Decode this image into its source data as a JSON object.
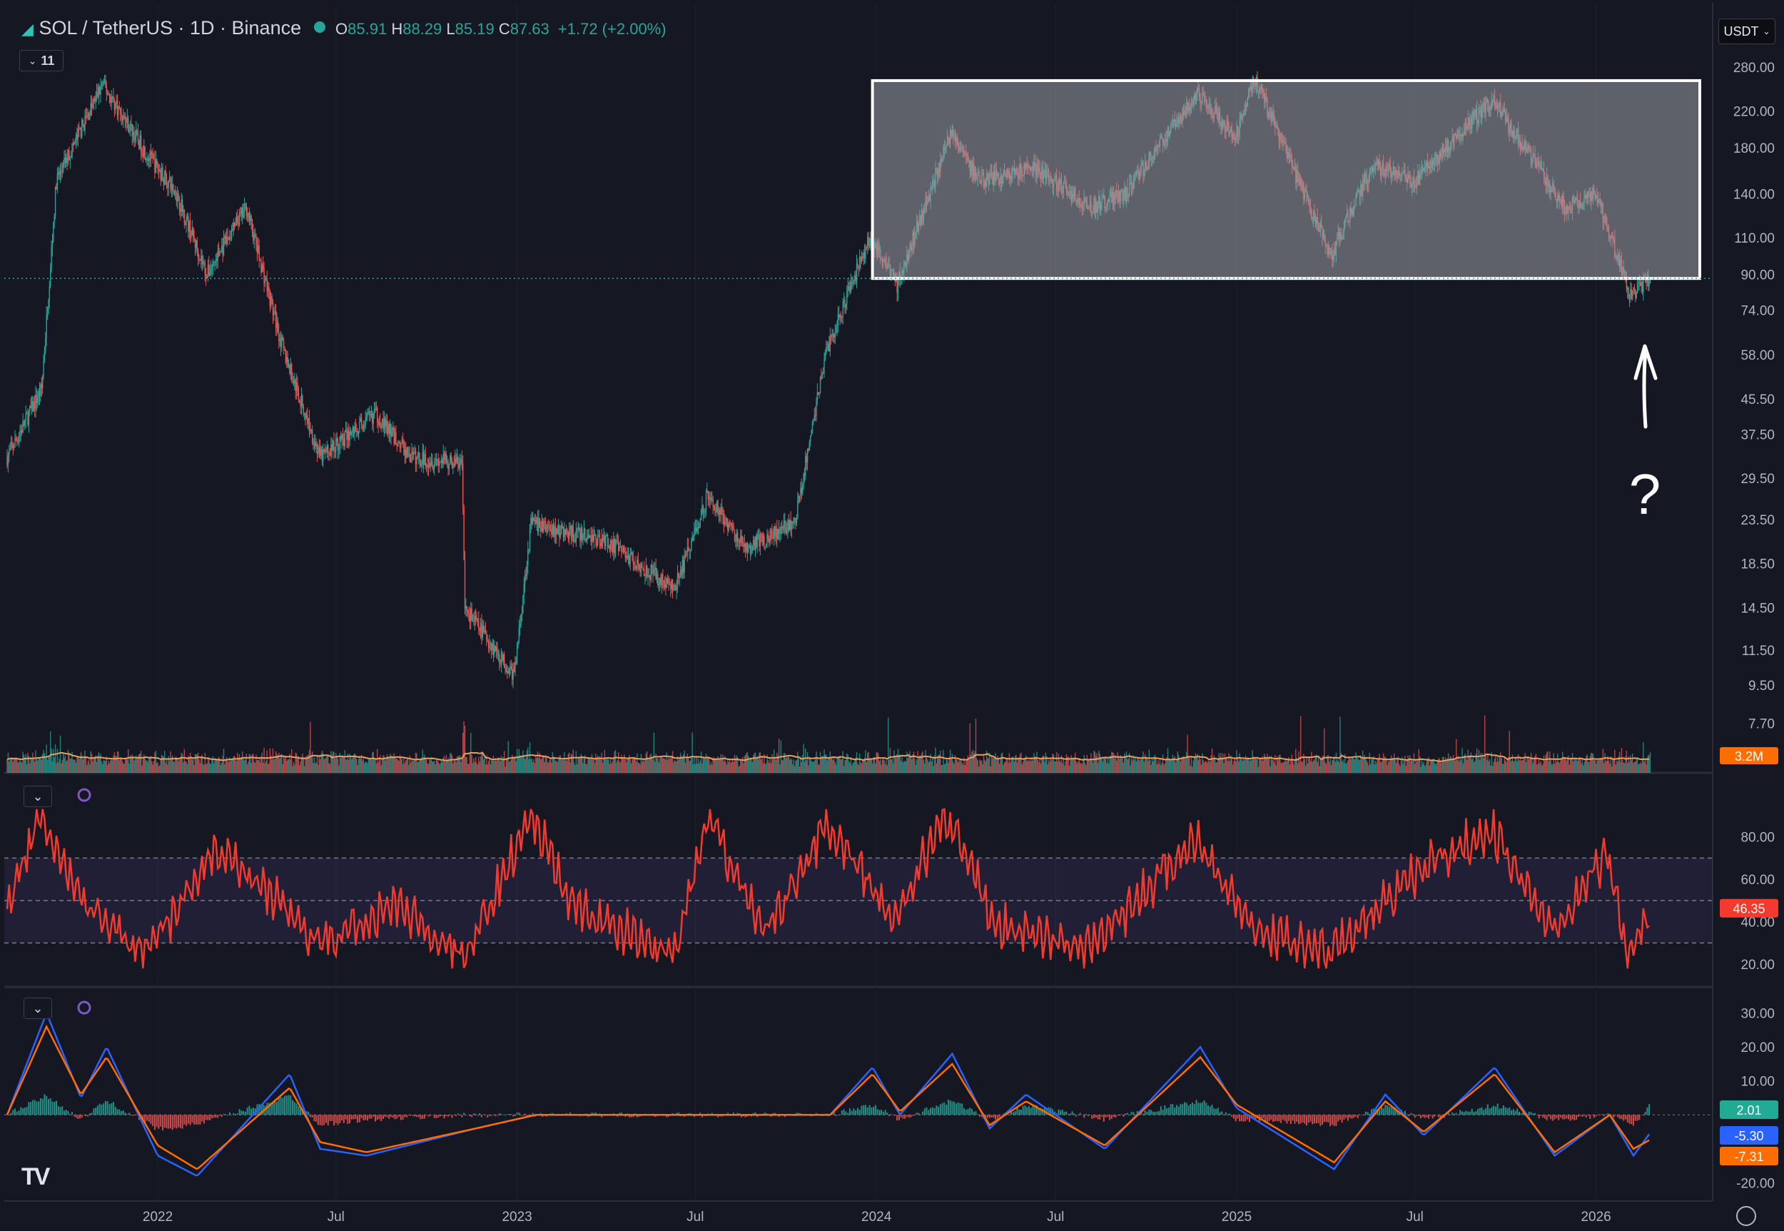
{
  "header": {
    "symbol": "SOL / TetherUS · 1D · Binance",
    "open_label": "O",
    "open": "85.91",
    "high_label": "H",
    "high": "88.29",
    "low_label": "L",
    "low": "85.19",
    "close_label": "C",
    "close": "87.63",
    "change": "+1.72 (+2.00%)",
    "indicator_count": "11"
  },
  "currency_button": "USDT",
  "colors": {
    "up": "#26a69a",
    "down": "#ef5350",
    "rsi": "#f23b2e",
    "macd": "#2962ff",
    "signal": "#ff6d00",
    "volume_ma": "#e8a062",
    "range_box": "#9a9ca6",
    "background": "#151722"
  },
  "price_panel": {
    "axis_ticks": [
      "280.00",
      "220.00",
      "180.00",
      "140.00",
      "110.00",
      "90.00",
      "74.00",
      "58.00",
      "45.50",
      "37.50",
      "29.50",
      "23.50",
      "18.50",
      "14.50",
      "11.50",
      "9.50",
      "7.70"
    ],
    "volume_badge": "3.2M",
    "annotation": "?"
  },
  "rsi_panel": {
    "axis_ticks": [
      "80.00",
      "60.00",
      "40.00",
      "20.00"
    ],
    "current_badge": "46.35"
  },
  "macd_panel": {
    "axis_ticks": [
      "30.00",
      "20.00",
      "10.00",
      "-20.00"
    ],
    "histogram_badge": "2.01",
    "macd_badge": "-5.30",
    "signal_badge": "-7.31"
  },
  "time_axis": [
    "2022",
    "Jul",
    "2023",
    "Jul",
    "2024",
    "Jul",
    "2025",
    "Jul",
    "2026"
  ],
  "chart_data": [
    {
      "type": "candlestick",
      "price_unit": "USDT",
      "scale": "log",
      "ylim": [
        7.0,
        290
      ],
      "x": [
        "2021-08-01",
        "2021-09-05",
        "2021-09-20",
        "2021-11-06",
        "2021-12-20",
        "2022-01-20",
        "2022-02-20",
        "2022-04-01",
        "2022-05-08",
        "2022-06-15",
        "2022-08-10",
        "2022-09-15",
        "2022-11-06",
        "2022-11-09",
        "2022-12-29",
        "2023-01-15",
        "2023-02-15",
        "2023-04-01",
        "2023-06-10",
        "2023-07-14",
        "2023-08-20",
        "2023-10-10",
        "2023-11-10",
        "2023-12-25",
        "2024-01-22",
        "2024-03-18",
        "2024-04-13",
        "2024-06-10",
        "2024-08-05",
        "2024-09-10",
        "2024-11-22",
        "2024-12-30",
        "2025-01-19",
        "2025-03-10",
        "2025-04-07",
        "2025-05-20",
        "2025-07-01",
        "2025-09-18",
        "2025-10-20",
        "2025-12-01",
        "2026-01-01",
        "2026-02-05",
        "2026-02-25"
      ],
      "close": [
        33,
        48,
        150,
        255,
        175,
        140,
        90,
        130,
        60,
        33,
        42,
        33,
        32,
        14.5,
        10,
        23,
        22,
        21,
        16,
        27,
        20,
        23,
        58,
        110,
        85,
        200,
        150,
        160,
        130,
        140,
        245,
        190,
        265,
        140,
        100,
        165,
        150,
        235,
        180,
        130,
        140,
        80,
        87.63
      ],
      "range_box": {
        "top": 260,
        "bottom": 88
      },
      "volume_ma_now": "3.2M"
    },
    {
      "type": "line",
      "name": "RSI",
      "ylim": [
        17,
        95
      ],
      "bands": [
        30,
        50,
        70
      ],
      "x": [
        "2021-08-01",
        "2021-09-05",
        "2021-10-10",
        "2021-12-20",
        "2022-03-01",
        "2022-06-15",
        "2022-09-01",
        "2022-11-09",
        "2023-01-15",
        "2023-03-01",
        "2023-06-10",
        "2023-07-14",
        "2023-09-10",
        "2023-11-10",
        "2024-01-22",
        "2024-03-10",
        "2024-05-01",
        "2024-08-05",
        "2024-11-22",
        "2025-01-19",
        "2025-04-07",
        "2025-07-20",
        "2025-09-18",
        "2025-11-20",
        "2026-01-10",
        "2026-02-05",
        "2026-02-25"
      ],
      "values": [
        48,
        90,
        52,
        25,
        75,
        30,
        48,
        22,
        90,
        45,
        25,
        88,
        35,
        85,
        40,
        92,
        38,
        28,
        80,
        35,
        25,
        70,
        82,
        35,
        72,
        22,
        46.35
      ]
    },
    {
      "type": "line",
      "name": "MACD",
      "ylim": [
        -22,
        32
      ],
      "x": [
        "2021-08-01",
        "2021-09-10",
        "2021-10-15",
        "2021-11-10",
        "2022-01-01",
        "2022-02-10",
        "2022-05-15",
        "2022-06-15",
        "2022-08-01",
        "2022-11-20",
        "2023-01-20",
        "2023-06-01",
        "2023-08-01",
        "2023-11-15",
        "2023-12-28",
        "2024-01-25",
        "2024-03-18",
        "2024-04-25",
        "2024-06-01",
        "2024-08-20",
        "2024-11-25",
        "2025-01-01",
        "2025-04-10",
        "2025-06-01",
        "2025-07-10",
        "2025-09-20",
        "2025-11-20",
        "2026-01-15",
        "2026-02-08",
        "2026-02-25"
      ],
      "macd": [
        0,
        30,
        5,
        20,
        -12,
        -18,
        12,
        -10,
        -12,
        -4,
        0,
        0,
        0,
        0,
        14,
        0,
        18,
        -4,
        6,
        -10,
        20,
        2,
        -16,
        6,
        -6,
        14,
        -12,
        0,
        -12,
        -5.3
      ],
      "signal": [
        0,
        26,
        6,
        17,
        -9,
        -16,
        8,
        -8,
        -11,
        -4,
        0,
        0,
        0,
        0,
        12,
        1,
        15,
        -3,
        4,
        -9,
        17,
        3,
        -14,
        4,
        -5,
        12,
        -11,
        0,
        -10,
        -7.31
      ],
      "histogram_now": 2.01
    }
  ]
}
